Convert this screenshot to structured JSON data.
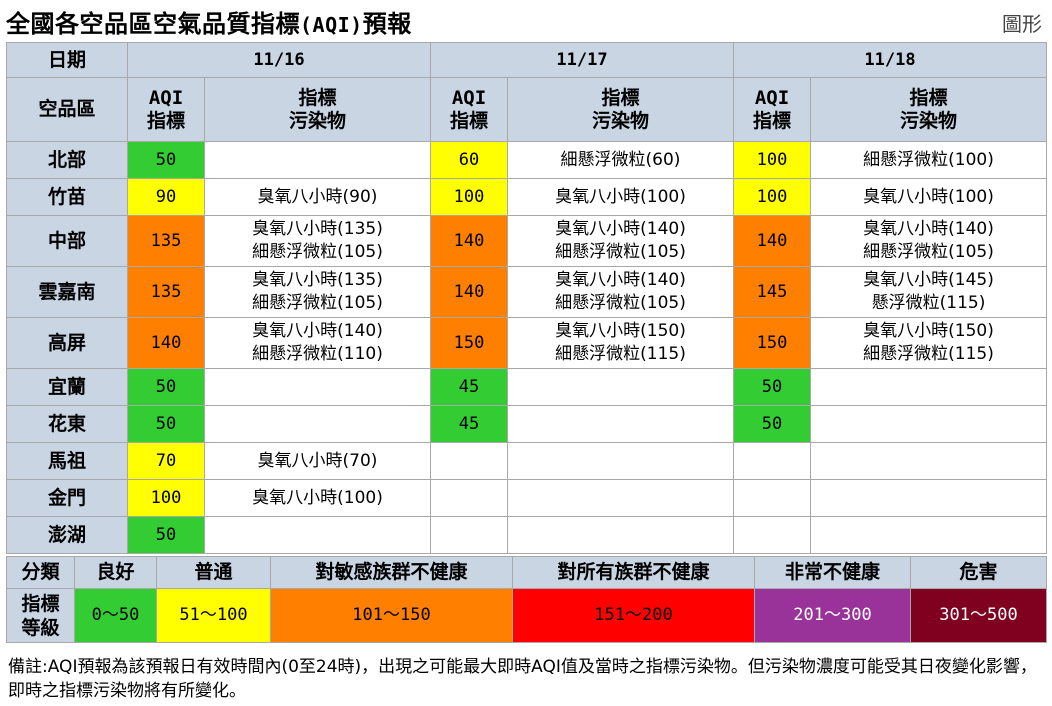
{
  "header": {
    "title_prefix": "全國各空品區空氣品質指標",
    "title_code": "(AQI)",
    "title_suffix": "預報",
    "graph_link": "圖形"
  },
  "table": {
    "date_label": "日期",
    "region_label": "空品區",
    "aqi_label_1": "AQI",
    "aqi_label_2": "指標",
    "pollutant_label_1": "指標",
    "pollutant_label_2": "污染物",
    "dates": [
      "11/16",
      "11/17",
      "11/18"
    ],
    "rows": [
      {
        "region": "北部",
        "cells": [
          {
            "aqi": "50",
            "level": "good",
            "pollutants": []
          },
          {
            "aqi": "60",
            "level": "moderate",
            "pollutants": [
              "細懸浮微粒(60)"
            ]
          },
          {
            "aqi": "100",
            "level": "moderate",
            "pollutants": [
              "細懸浮微粒(100)"
            ]
          }
        ]
      },
      {
        "region": "竹苗",
        "cells": [
          {
            "aqi": "90",
            "level": "moderate",
            "pollutants": [
              "臭氧八小時(90)"
            ]
          },
          {
            "aqi": "100",
            "level": "moderate",
            "pollutants": [
              "臭氧八小時(100)"
            ]
          },
          {
            "aqi": "100",
            "level": "moderate",
            "pollutants": [
              "臭氧八小時(100)"
            ]
          }
        ]
      },
      {
        "region": "中部",
        "cells": [
          {
            "aqi": "135",
            "level": "sensitive",
            "pollutants": [
              "臭氧八小時(135)",
              "細懸浮微粒(105)"
            ]
          },
          {
            "aqi": "140",
            "level": "sensitive",
            "pollutants": [
              "臭氧八小時(140)",
              "細懸浮微粒(105)"
            ]
          },
          {
            "aqi": "140",
            "level": "sensitive",
            "pollutants": [
              "臭氧八小時(140)",
              "細懸浮微粒(105)"
            ]
          }
        ]
      },
      {
        "region": "雲嘉南",
        "cells": [
          {
            "aqi": "135",
            "level": "sensitive",
            "pollutants": [
              "臭氧八小時(135)",
              "細懸浮微粒(105)"
            ]
          },
          {
            "aqi": "140",
            "level": "sensitive",
            "pollutants": [
              "臭氧八小時(140)",
              "細懸浮微粒(105)"
            ]
          },
          {
            "aqi": "145",
            "level": "sensitive",
            "pollutants": [
              "臭氧八小時(145)",
              "懸浮微粒(115)"
            ]
          }
        ]
      },
      {
        "region": "高屏",
        "cells": [
          {
            "aqi": "140",
            "level": "sensitive",
            "pollutants": [
              "臭氧八小時(140)",
              "細懸浮微粒(110)"
            ]
          },
          {
            "aqi": "150",
            "level": "sensitive",
            "pollutants": [
              "臭氧八小時(150)",
              "細懸浮微粒(115)"
            ]
          },
          {
            "aqi": "150",
            "level": "sensitive",
            "pollutants": [
              "臭氧八小時(150)",
              "細懸浮微粒(115)"
            ]
          }
        ]
      },
      {
        "region": "宜蘭",
        "cells": [
          {
            "aqi": "50",
            "level": "good",
            "pollutants": []
          },
          {
            "aqi": "45",
            "level": "good",
            "pollutants": []
          },
          {
            "aqi": "50",
            "level": "good",
            "pollutants": []
          }
        ]
      },
      {
        "region": "花東",
        "cells": [
          {
            "aqi": "50",
            "level": "good",
            "pollutants": []
          },
          {
            "aqi": "45",
            "level": "good",
            "pollutants": []
          },
          {
            "aqi": "50",
            "level": "good",
            "pollutants": []
          }
        ]
      },
      {
        "region": "馬祖",
        "cells": [
          {
            "aqi": "70",
            "level": "moderate",
            "pollutants": [
              "臭氧八小時(70)"
            ]
          },
          {
            "aqi": "",
            "level": "none",
            "pollutants": []
          },
          {
            "aqi": "",
            "level": "none",
            "pollutants": []
          }
        ]
      },
      {
        "region": "金門",
        "cells": [
          {
            "aqi": "100",
            "level": "moderate",
            "pollutants": [
              "臭氧八小時(100)"
            ]
          },
          {
            "aqi": "",
            "level": "none",
            "pollutants": []
          },
          {
            "aqi": "",
            "level": "none",
            "pollutants": []
          }
        ]
      },
      {
        "region": "澎湖",
        "cells": [
          {
            "aqi": "50",
            "level": "good",
            "pollutants": []
          },
          {
            "aqi": "",
            "level": "none",
            "pollutants": []
          },
          {
            "aqi": "",
            "level": "none",
            "pollutants": []
          }
        ]
      }
    ]
  },
  "legend": {
    "category_label": "分類",
    "level_label_1": "指標",
    "level_label_2": "等級",
    "items": [
      {
        "name": "良好",
        "range": "0～50",
        "color": "#33cc33",
        "text_color": "#000000"
      },
      {
        "name": "普通",
        "range": "51～100",
        "color": "#ffff00",
        "text_color": "#000000"
      },
      {
        "name": "對敏感族群不健康",
        "range": "101～150",
        "color": "#ff8000",
        "text_color": "#000000"
      },
      {
        "name": "對所有族群不健康",
        "range": "151～200",
        "color": "#ff0000",
        "text_color": "#000000"
      },
      {
        "name": "非常不健康",
        "range": "201～300",
        "color": "#993399",
        "text_color": "#ffffff"
      },
      {
        "name": "危害",
        "range": "301～500",
        "color": "#800020",
        "text_color": "#ffffff"
      }
    ]
  },
  "colors": {
    "header_bg": "#c9d5e3",
    "good": "#33cc33",
    "moderate": "#ffff00",
    "sensitive": "#ff8000",
    "border": "#a8a8a8"
  },
  "note": "備註:AQI預報為該預報日有效時間內(0至24時)，出現之可能最大即時AQI值及當時之指標污染物。但污染物濃度可能受其日夜變化影響，即時之指標污染物將有所變化。"
}
